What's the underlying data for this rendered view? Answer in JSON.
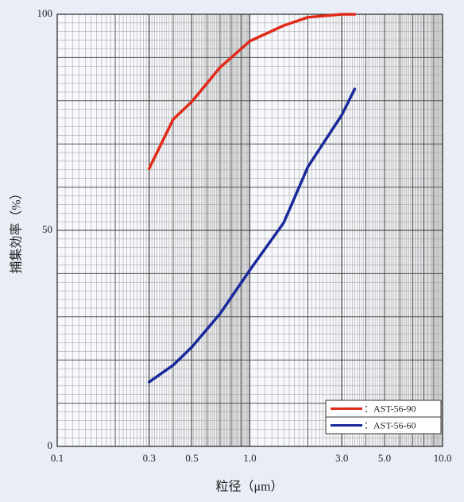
{
  "chart_data": {
    "type": "line",
    "x_label": "粒径（μm）",
    "y_label": "捕集効率（%）",
    "x_log": true,
    "grid": true,
    "minor_grid": true,
    "legend_position": "lower right",
    "xlim": [
      0.1,
      10
    ],
    "xticks": [
      0.1,
      0.3,
      0.5,
      {
        "value": 1,
        "label": "1.0"
      },
      {
        "value": 3,
        "label": "3.0"
      },
      {
        "value": 5,
        "label": "5.0"
      },
      {
        "value": 10,
        "label": "10.0"
      }
    ],
    "ylim": [
      0,
      100
    ],
    "yticks": [
      0,
      50,
      100
    ],
    "series": [
      {
        "name": "：AST-56-90",
        "color": "#e02a1a",
        "x": [
          0.3,
          0.4,
          0.5,
          0.7,
          1.0,
          1.5,
          2.0,
          3.0,
          3.5
        ],
        "values": [
          64.3,
          75.7,
          79.8,
          87.7,
          93.8,
          97.4,
          99.3,
          100,
          100
        ]
      },
      {
        "name": "：AST-56-60",
        "color": "#1a2a9a",
        "x": [
          0.3,
          0.4,
          0.5,
          0.7,
          1.0,
          1.5,
          2.0,
          3.0,
          3.5
        ],
        "values": [
          14.9,
          18.8,
          23,
          30.7,
          40.8,
          51.8,
          64.7,
          76.7,
          82.7
        ]
      }
    ]
  }
}
